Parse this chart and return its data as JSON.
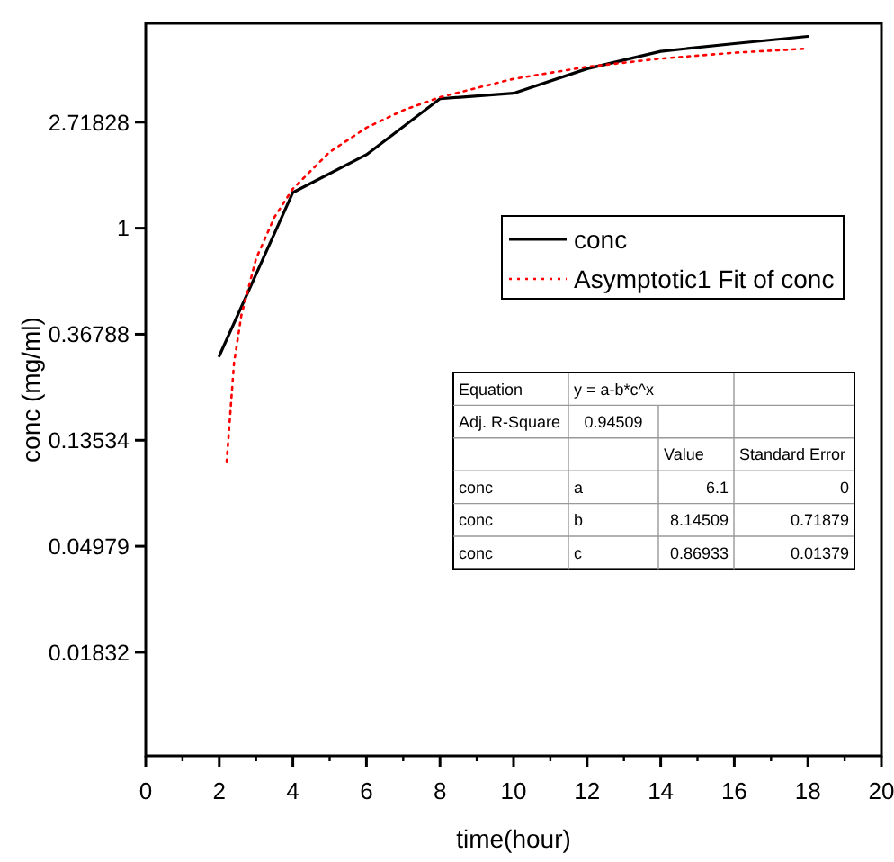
{
  "chart_data": {
    "type": "line",
    "xlabel": "time(hour)",
    "ylabel": "conc (mg/ml)",
    "log": "y",
    "xlim": [
      0,
      20
    ],
    "xticks": [
      0,
      2,
      4,
      6,
      8,
      10,
      12,
      14,
      16,
      18,
      20
    ],
    "ylim": [
      0.0069,
      6.9
    ],
    "yticks": [
      0.01832,
      0.04979,
      0.13534,
      0.36788,
      1,
      2.71828
    ],
    "legend": "right",
    "grid": false,
    "marker": "none",
    "series": [
      {
        "name": "conc",
        "color": "#000000",
        "line_style": "solid",
        "x": [
          2,
          4,
          6,
          8,
          10,
          12,
          14,
          16,
          18
        ],
        "values": [
          0.3,
          1.4,
          2.0,
          3.39,
          3.57,
          4.5,
          5.3,
          5.7,
          6.1
        ]
      },
      {
        "name": "Asymptotic1 Fit of conc",
        "color": "#ff0000",
        "line_style": "dotted",
        "x": [
          2.2,
          2.4,
          2.6,
          3,
          3.5,
          4,
          5,
          6,
          7,
          8,
          10,
          12,
          14,
          16,
          18
        ],
        "values": [
          0.11,
          0.28,
          0.44,
          0.75,
          1.11,
          1.45,
          2.05,
          2.58,
          3.04,
          3.44,
          4.09,
          4.58,
          4.95,
          5.23,
          5.44
        ]
      }
    ],
    "annotations": [
      "Equation",
      "y = a-b*c^x",
      "Adj. R-Square",
      "0.94509",
      "Value",
      "Standard Error",
      "conc",
      "a",
      "6.1",
      "0",
      "conc",
      "b",
      "8.14509",
      "0.71879",
      "conc",
      "c",
      "0.86933",
      "0.01379"
    ]
  }
}
